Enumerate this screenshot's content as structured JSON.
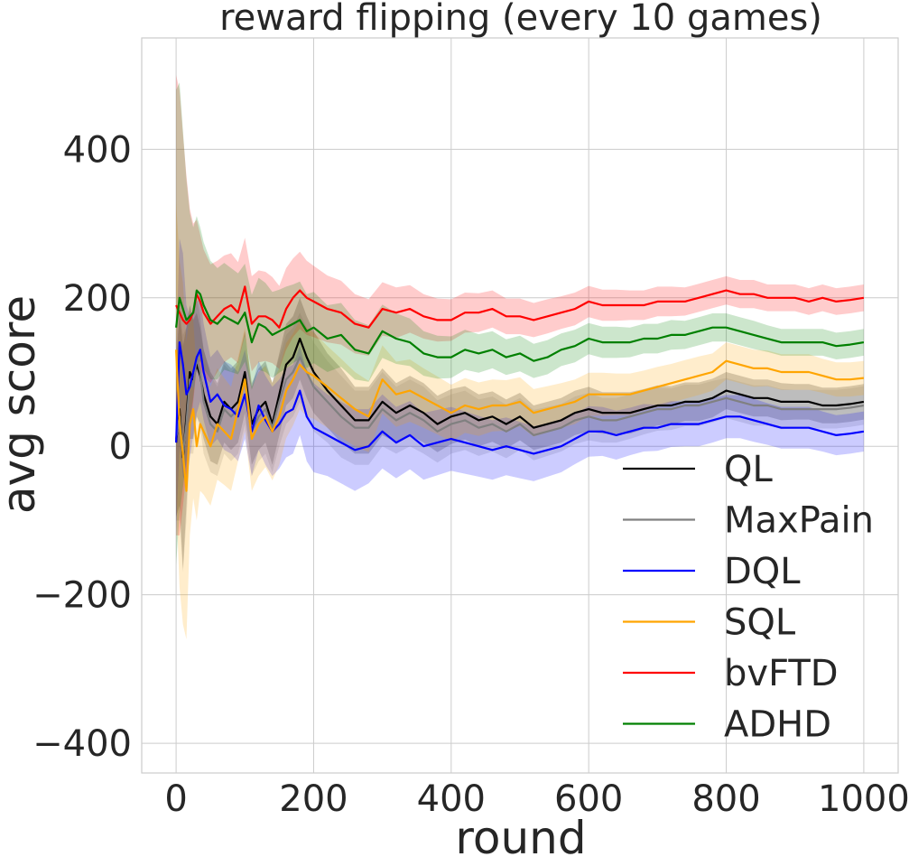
{
  "chart_data": {
    "type": "line",
    "title": "reward flipping (every 10 games)",
    "xlabel": "round",
    "ylabel": "avg score",
    "xlim": [
      -50,
      1050
    ],
    "ylim": [
      -440,
      550
    ],
    "xticks": [
      0,
      200,
      400,
      600,
      800,
      1000
    ],
    "yticks": [
      -400,
      -200,
      0,
      200,
      400
    ],
    "xtick_labels": [
      "0",
      "200",
      "400",
      "600",
      "800",
      "1000"
    ],
    "ytick_labels": [
      "−400",
      "−200",
      "0",
      "200",
      "400"
    ],
    "grid": true,
    "legend_position": "lower-right",
    "x": [
      0,
      5,
      10,
      15,
      20,
      25,
      30,
      35,
      40,
      50,
      60,
      70,
      80,
      90,
      100,
      110,
      120,
      130,
      140,
      150,
      160,
      170,
      180,
      190,
      200,
      220,
      240,
      260,
      280,
      300,
      320,
      340,
      360,
      380,
      400,
      420,
      440,
      460,
      480,
      500,
      520,
      540,
      560,
      580,
      600,
      620,
      640,
      660,
      680,
      700,
      720,
      740,
      760,
      780,
      800,
      820,
      840,
      860,
      880,
      900,
      920,
      940,
      960,
      980,
      1000
    ],
    "series": [
      {
        "name": "QL",
        "color": "#000000",
        "values": [
          5,
          50,
          -15,
          40,
          100,
          90,
          110,
          95,
          70,
          40,
          30,
          60,
          50,
          60,
          100,
          30,
          50,
          60,
          30,
          70,
          110,
          120,
          145,
          120,
          100,
          75,
          55,
          35,
          35,
          60,
          45,
          55,
          45,
          30,
          40,
          45,
          35,
          40,
          30,
          40,
          25,
          30,
          35,
          45,
          50,
          45,
          45,
          45,
          50,
          55,
          55,
          60,
          60,
          65,
          75,
          70,
          65,
          65,
          60,
          60,
          60,
          55,
          55,
          57,
          60
        ],
        "band": [
          100,
          130,
          150,
          120,
          90,
          80,
          70,
          65,
          60,
          60,
          55,
          55,
          55,
          55,
          55,
          55,
          55,
          55,
          55,
          55,
          55,
          55,
          55,
          55,
          55,
          50,
          50,
          45,
          45,
          45,
          40,
          40,
          40,
          38,
          37,
          36,
          35,
          34,
          33,
          32,
          30,
          30,
          30,
          30,
          30,
          28,
          28,
          28,
          27,
          27,
          26,
          26,
          26,
          26,
          25,
          25,
          25,
          25,
          25,
          24,
          24,
          24,
          24,
          24,
          24
        ]
      },
      {
        "name": "MaxPain",
        "color": "#808080",
        "values": [
          10,
          40,
          -10,
          30,
          90,
          80,
          120,
          100,
          60,
          30,
          20,
          50,
          40,
          50,
          90,
          20,
          40,
          50,
          25,
          60,
          90,
          100,
          120,
          100,
          80,
          60,
          40,
          25,
          25,
          50,
          35,
          45,
          35,
          20,
          30,
          35,
          25,
          30,
          20,
          30,
          15,
          20,
          25,
          35,
          40,
          35,
          35,
          40,
          45,
          50,
          50,
          55,
          55,
          60,
          65,
          60,
          55,
          55,
          50,
          50,
          50,
          50,
          50,
          52,
          55
        ],
        "band": [
          110,
          140,
          160,
          130,
          100,
          90,
          80,
          75,
          70,
          65,
          60,
          60,
          60,
          60,
          60,
          60,
          60,
          60,
          60,
          60,
          60,
          60,
          60,
          60,
          60,
          55,
          55,
          50,
          50,
          50,
          45,
          45,
          45,
          42,
          40,
          40,
          38,
          37,
          36,
          35,
          34,
          33,
          32,
          32,
          32,
          30,
          30,
          30,
          29,
          29,
          28,
          28,
          28,
          28,
          27,
          27,
          27,
          27,
          27,
          26,
          26,
          26,
          26,
          26,
          26
        ]
      },
      {
        "name": "DQL",
        "color": "#0000ff",
        "values": [
          5,
          140,
          110,
          70,
          80,
          100,
          120,
          130,
          100,
          60,
          70,
          55,
          50,
          40,
          70,
          20,
          55,
          35,
          20,
          30,
          45,
          50,
          75,
          40,
          25,
          15,
          5,
          -5,
          0,
          20,
          5,
          15,
          0,
          5,
          10,
          5,
          0,
          -5,
          0,
          -5,
          -10,
          -5,
          0,
          10,
          20,
          20,
          15,
          20,
          25,
          25,
          30,
          30,
          30,
          35,
          40,
          40,
          35,
          30,
          25,
          25,
          25,
          20,
          15,
          17,
          20
        ],
        "band": [
          120,
          140,
          150,
          120,
          95,
          85,
          75,
          70,
          65,
          60,
          60,
          60,
          60,
          60,
          60,
          60,
          60,
          60,
          60,
          60,
          60,
          60,
          60,
          60,
          60,
          55,
          55,
          55,
          50,
          50,
          48,
          46,
          45,
          44,
          43,
          42,
          41,
          40,
          39,
          38,
          37,
          36,
          35,
          34,
          34,
          33,
          33,
          32,
          32,
          31,
          31,
          30,
          30,
          30,
          29,
          29,
          29,
          28,
          28,
          28,
          28,
          27,
          27,
          27,
          27
        ]
      },
      {
        "name": "SQL",
        "color": "#ffa500",
        "values": [
          130,
          30,
          -10,
          -60,
          30,
          50,
          0,
          30,
          20,
          0,
          30,
          20,
          10,
          50,
          90,
          10,
          30,
          40,
          20,
          40,
          75,
          90,
          110,
          100,
          95,
          80,
          65,
          50,
          40,
          90,
          70,
          75,
          65,
          55,
          45,
          55,
          50,
          55,
          55,
          60,
          45,
          50,
          55,
          60,
          70,
          70,
          70,
          70,
          75,
          80,
          85,
          90,
          95,
          100,
          115,
          110,
          105,
          105,
          100,
          100,
          100,
          95,
          90,
          90,
          92
        ],
        "band": [
          200,
          220,
          230,
          200,
          150,
          120,
          100,
          90,
          85,
          80,
          75,
          72,
          70,
          70,
          70,
          70,
          70,
          68,
          66,
          65,
          64,
          62,
          60,
          60,
          58,
          55,
          53,
          50,
          48,
          46,
          44,
          42,
          40,
          39,
          38,
          37,
          36,
          35,
          34,
          33,
          32,
          31,
          30,
          30,
          29,
          29,
          28,
          28,
          27,
          27,
          26,
          26,
          26,
          25,
          25,
          25,
          25,
          24,
          24,
          24,
          24,
          23,
          23,
          23,
          23
        ]
      },
      {
        "name": "bvFTD",
        "color": "#ff0000",
        "values": [
          190,
          180,
          170,
          165,
          170,
          180,
          205,
          195,
          180,
          165,
          175,
          185,
          190,
          180,
          215,
          165,
          175,
          175,
          170,
          160,
          185,
          200,
          210,
          200,
          195,
          185,
          180,
          165,
          160,
          185,
          180,
          185,
          175,
          170,
          170,
          180,
          180,
          185,
          175,
          175,
          170,
          175,
          180,
          185,
          195,
          190,
          190,
          190,
          190,
          195,
          195,
          195,
          200,
          205,
          210,
          205,
          205,
          200,
          200,
          200,
          195,
          200,
          195,
          197,
          200
        ],
        "band": [
          310,
          300,
          250,
          200,
          150,
          120,
          100,
          90,
          85,
          80,
          75,
          72,
          70,
          68,
          66,
          64,
          62,
          60,
          58,
          56,
          55,
          53,
          52,
          50,
          48,
          45,
          43,
          40,
          38,
          36,
          34,
          32,
          30,
          29,
          28,
          27,
          26,
          25,
          24,
          24,
          23,
          23,
          22,
          22,
          21,
          21,
          21,
          20,
          20,
          20,
          20,
          19,
          19,
          19,
          19,
          19,
          19,
          18,
          18,
          18,
          18,
          18,
          18,
          18,
          18
        ]
      },
      {
        "name": "ADHD",
        "color": "#008000",
        "values": [
          160,
          200,
          185,
          170,
          175,
          180,
          210,
          205,
          190,
          170,
          165,
          175,
          170,
          165,
          180,
          140,
          165,
          160,
          150,
          155,
          160,
          165,
          170,
          155,
          160,
          145,
          150,
          130,
          125,
          155,
          145,
          140,
          125,
          120,
          120,
          130,
          125,
          130,
          120,
          125,
          115,
          120,
          130,
          135,
          145,
          140,
          140,
          140,
          145,
          145,
          150,
          150,
          155,
          160,
          160,
          155,
          150,
          145,
          140,
          140,
          140,
          140,
          135,
          137,
          140
        ],
        "band": [
          320,
          290,
          240,
          190,
          140,
          115,
          100,
          90,
          85,
          80,
          75,
          72,
          70,
          68,
          66,
          64,
          62,
          60,
          58,
          56,
          55,
          53,
          52,
          50,
          48,
          45,
          43,
          40,
          38,
          36,
          34,
          32,
          30,
          29,
          28,
          27,
          26,
          25,
          24,
          24,
          23,
          23,
          22,
          22,
          21,
          21,
          21,
          20,
          20,
          20,
          20,
          19,
          19,
          19,
          19,
          19,
          19,
          18,
          18,
          18,
          18,
          18,
          18,
          18,
          18
        ]
      }
    ]
  }
}
